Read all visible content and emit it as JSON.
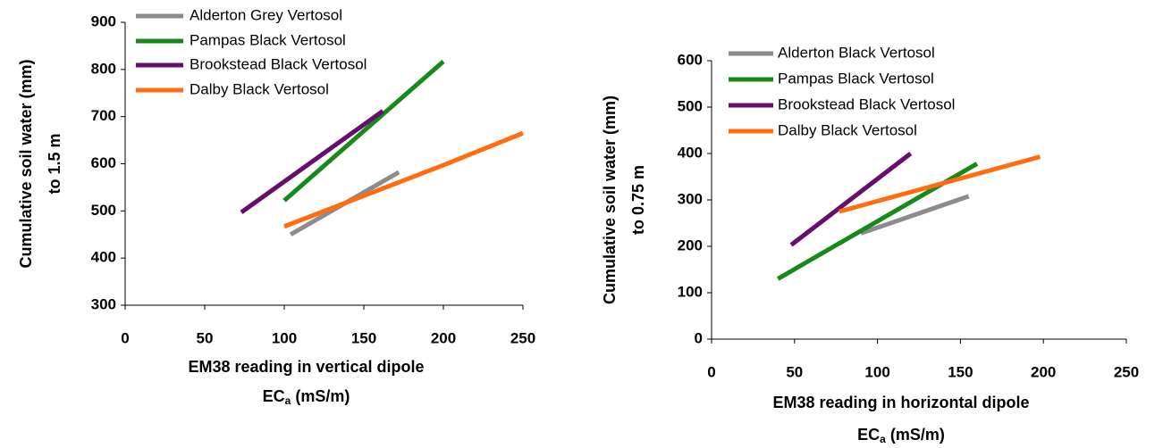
{
  "chart_data": [
    {
      "type": "line",
      "xlabel": [
        "EM38 reading in vertical dipole",
        "EC",
        "a",
        "(mS/m)"
      ],
      "ylabel": [
        "Cumulative soil water (mm)",
        "to 1.5 m"
      ],
      "xlim": [
        0,
        250
      ],
      "xticks": [
        0,
        50,
        100,
        150,
        200,
        250
      ],
      "ylim": [
        300,
        900
      ],
      "yticks": [
        300,
        400,
        500,
        600,
        700,
        800,
        900
      ],
      "legend": "top-left",
      "series": [
        {
          "name": "Alderton Grey Vertosol",
          "color": "#8c8c8c",
          "x": [
            104,
            172
          ],
          "values": [
            450,
            582
          ]
        },
        {
          "name": "Pampas Black Vertosol",
          "color": "#16891a",
          "x": [
            100,
            200
          ],
          "values": [
            522,
            817
          ]
        },
        {
          "name": "Brookstead Black Vertosol",
          "color": "#660e6e",
          "x": [
            73,
            162
          ],
          "values": [
            497,
            712
          ]
        },
        {
          "name": "Dalby Black Vertosol",
          "color": "#ff6d10",
          "x": [
            100,
            200,
            250
          ],
          "values": [
            467,
            597,
            665
          ]
        }
      ]
    },
    {
      "type": "line",
      "xlabel": [
        "EM38 reading in horizontal dipole",
        "EC",
        "a",
        "(mS/m)"
      ],
      "ylabel": [
        "Cumulative soil water (mm)",
        "to 0.75 m"
      ],
      "xlim": [
        0,
        250
      ],
      "xticks": [
        0,
        50,
        100,
        150,
        200,
        250
      ],
      "ylim": [
        0,
        600
      ],
      "yticks": [
        0,
        100,
        200,
        300,
        400,
        500,
        600
      ],
      "legend": "top-left",
      "series": [
        {
          "name": "Alderton Black Vertosol",
          "color": "#8c8c8c",
          "x": [
            90,
            155
          ],
          "values": [
            228,
            308
          ]
        },
        {
          "name": "Pampas Black Vertosol",
          "color": "#16891a",
          "x": [
            40,
            160
          ],
          "values": [
            130,
            378
          ]
        },
        {
          "name": "Brookstead Black Vertosol",
          "color": "#660e6e",
          "x": [
            48,
            120
          ],
          "values": [
            203,
            400
          ]
        },
        {
          "name": "Dalby Black Vertosol",
          "color": "#ff6d10",
          "x": [
            77,
            198
          ],
          "values": [
            275,
            393
          ]
        }
      ]
    }
  ]
}
